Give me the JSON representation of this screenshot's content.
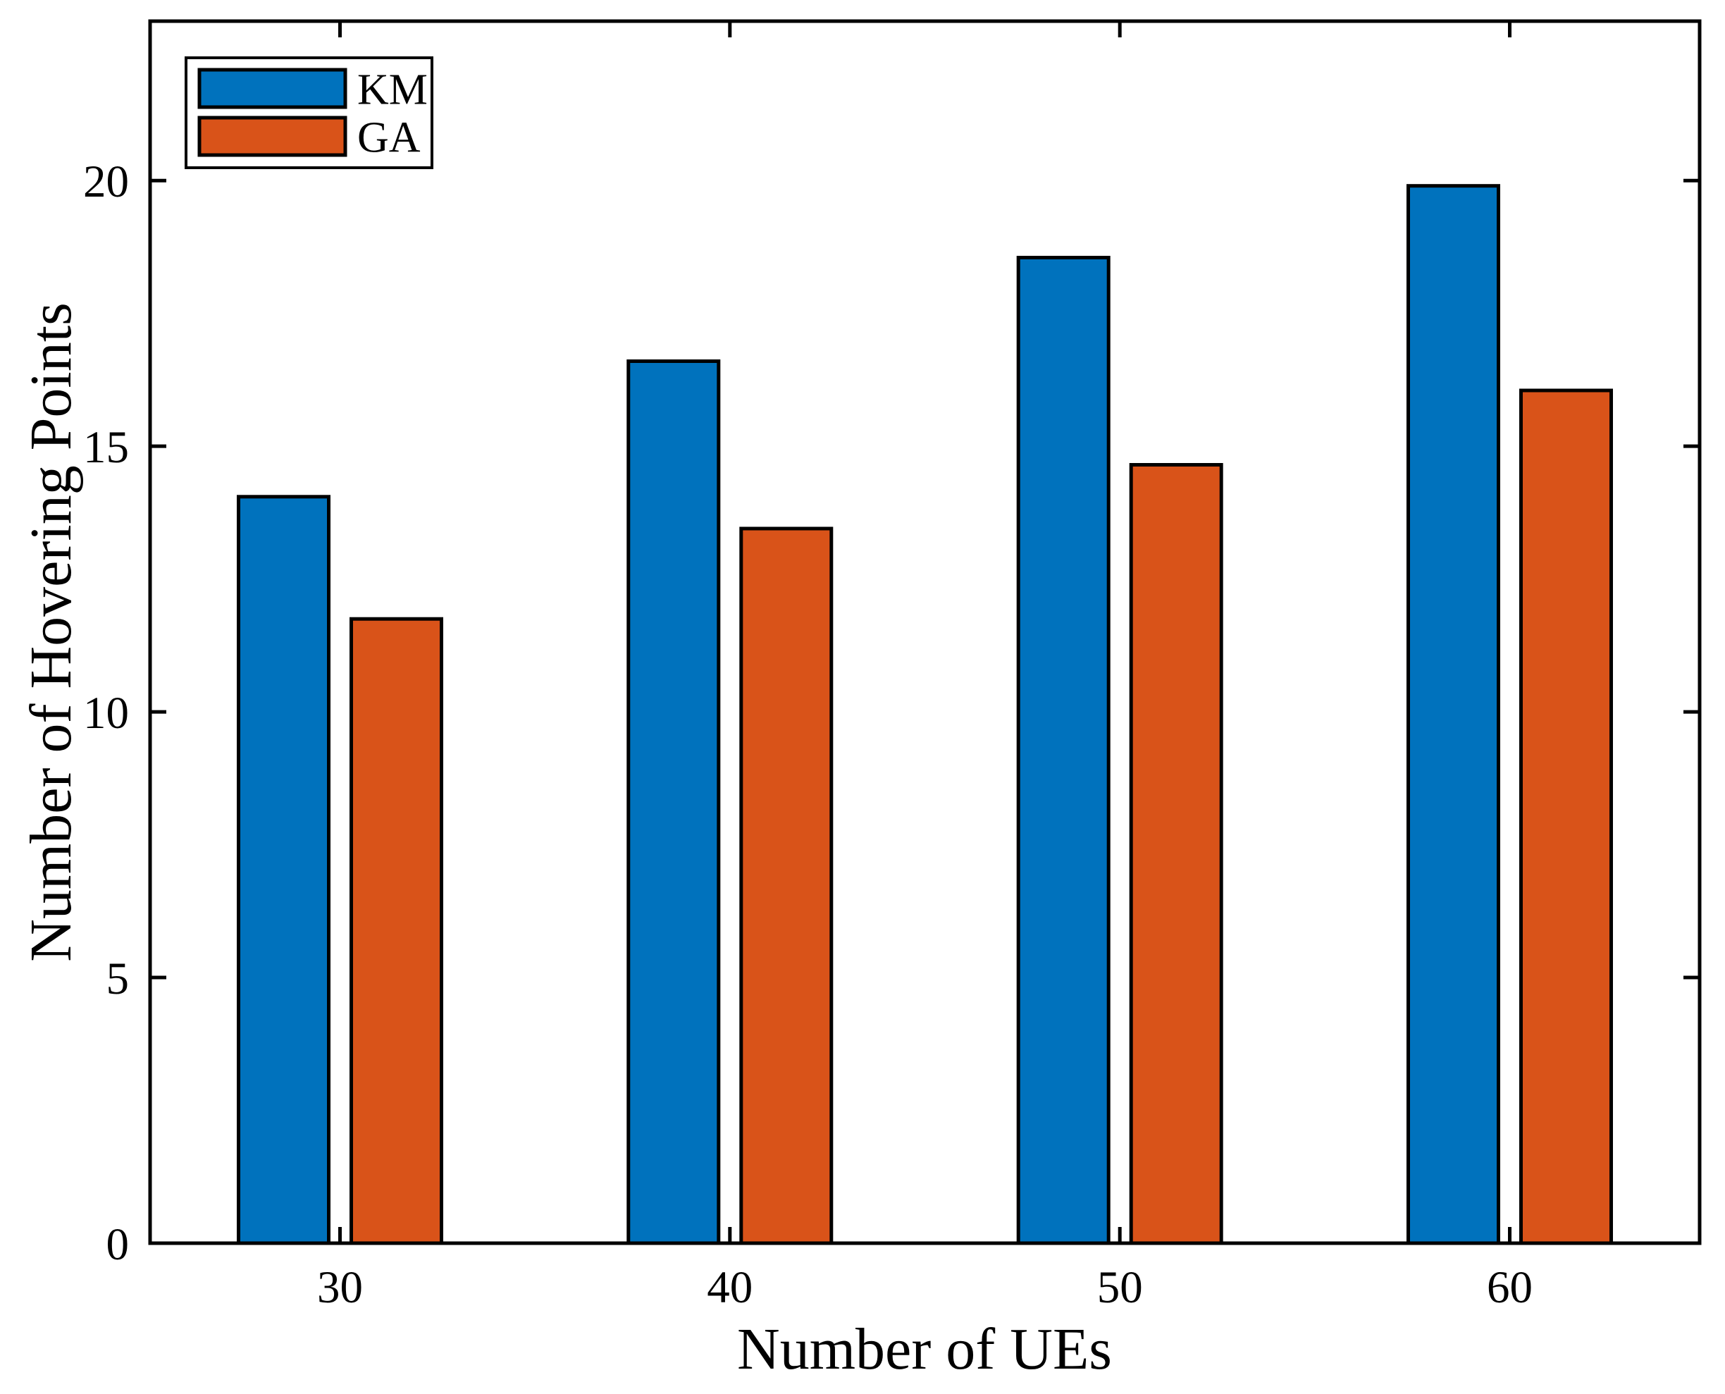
{
  "figure": {
    "background": "#ffffff",
    "axis_color": "#000000",
    "bar_edge_color": "#000000"
  },
  "chart_data": {
    "type": "bar",
    "title": "",
    "xlabel": "Number of UEs",
    "ylabel": "Number of Hovering Points",
    "categories": [
      "30",
      "40",
      "50",
      "60"
    ],
    "series": [
      {
        "name": "KM",
        "color": "#0072BD",
        "values": [
          14.05,
          16.6,
          18.55,
          19.9
        ]
      },
      {
        "name": "GA",
        "color": "#D95319",
        "values": [
          11.75,
          13.45,
          14.65,
          16.05
        ]
      }
    ],
    "ylim": [
      0,
      23
    ],
    "yticks": [
      0,
      5,
      10,
      15,
      20
    ],
    "grid": false,
    "box": true,
    "tick_direction": "in",
    "legend_position": "top-left"
  }
}
